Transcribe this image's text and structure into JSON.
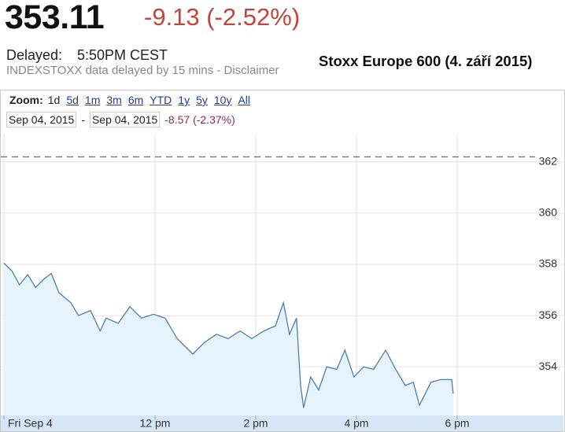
{
  "header": {
    "price": "353.11",
    "change": "-9.13 (-2.52%)",
    "delayed_label": "Delayed:",
    "delayed_time": "5:50PM CEST",
    "note": "INDEXSTOXX data delayed by 15 mins - Disclaimer",
    "title": "Stoxx Europe 600 (4. září 2015)"
  },
  "toolbar": {
    "zoom_label": "Zoom:",
    "zoom_options": [
      "1d",
      "5d",
      "1m",
      "3m",
      "6m",
      "YTD",
      "1y",
      "5y",
      "10y",
      "All"
    ],
    "date_from": "Sep 04, 2015",
    "separator": "-",
    "date_to": "Sep 04, 2015",
    "range_change": "-8.57 (-2.37%)"
  },
  "chart_data": {
    "type": "area",
    "x": [
      9.0,
      9.16,
      9.31,
      9.47,
      9.63,
      9.78,
      9.94,
      10.09,
      10.33,
      10.48,
      10.72,
      10.91,
      11.03,
      11.27,
      11.5,
      11.73,
      11.97,
      12.2,
      12.44,
      12.75,
      12.98,
      13.22,
      13.45,
      13.69,
      13.92,
      14.16,
      14.39,
      14.55,
      14.67,
      14.81,
      14.89,
      14.95,
      15.09,
      15.25,
      15.41,
      15.61,
      15.77,
      15.95,
      16.14,
      16.34,
      16.58,
      16.78,
      16.97,
      17.13,
      17.25,
      17.48,
      17.67,
      17.89,
      17.92
    ],
    "values": [
      358.05,
      357.74,
      357.2,
      357.6,
      357.1,
      357.4,
      357.65,
      356.9,
      356.5,
      356.0,
      356.2,
      355.4,
      355.9,
      355.7,
      356.35,
      355.9,
      356.05,
      355.9,
      355.1,
      354.5,
      354.95,
      355.27,
      355.1,
      355.4,
      355.1,
      355.4,
      355.6,
      356.5,
      355.27,
      355.9,
      353.27,
      352.4,
      353.6,
      353.1,
      354.0,
      353.9,
      354.65,
      353.6,
      354.0,
      353.9,
      354.65,
      353.9,
      353.27,
      353.4,
      352.5,
      353.4,
      353.5,
      353.5,
      352.95
    ],
    "color": "#4a7fb0",
    "fill_color": "#e6f3fc",
    "reference_line": 362.2,
    "reference_color": "#a83a3a",
    "xlim": [
      9,
      20
    ],
    "xticks": [
      {
        "value": 9,
        "label": "Fri Sep 4"
      },
      {
        "value": 12,
        "label": "12 pm"
      },
      {
        "value": 14,
        "label": "2 pm"
      },
      {
        "value": 16,
        "label": "4 pm"
      },
      {
        "value": 18,
        "label": "6 pm"
      }
    ],
    "ylim": [
      352.1,
      363.1
    ],
    "yticks": [
      354,
      356,
      358,
      360,
      362
    ],
    "grid": true
  }
}
